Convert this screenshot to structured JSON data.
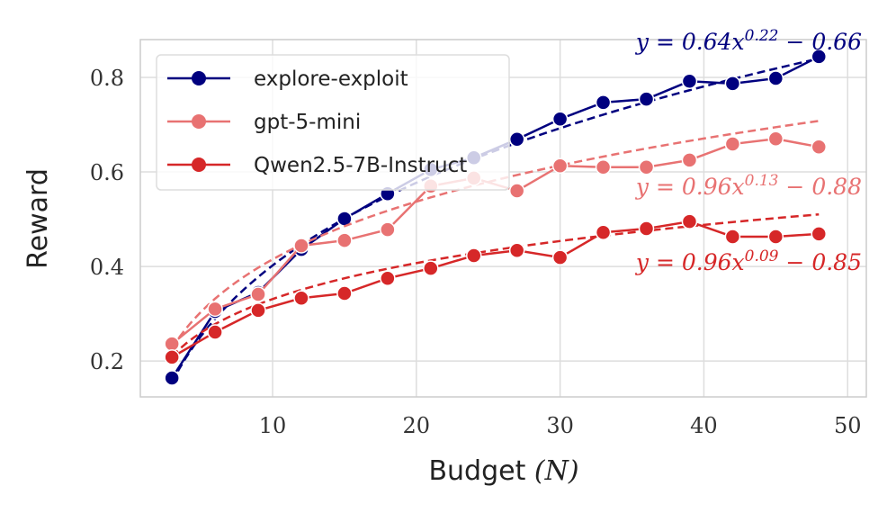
{
  "chart_data": {
    "type": "line",
    "title": "",
    "xlabel": "Budget",
    "xlabel_math": "(N)",
    "ylabel": "Reward",
    "xlim": [
      0.8,
      51.3
    ],
    "ylim": [
      0.124,
      0.88
    ],
    "xticks": [
      10,
      20,
      30,
      40,
      50
    ],
    "yticks": [
      0.2,
      0.4,
      0.6,
      0.8
    ],
    "ytick_labels": [
      "0.2",
      "0.4",
      "0.6",
      "0.8"
    ],
    "grid": true,
    "legend_placement": "top-left",
    "x": [
      3,
      6,
      9,
      12,
      15,
      18,
      21,
      24,
      27,
      30,
      33,
      36,
      39,
      42,
      45,
      48
    ],
    "series": [
      {
        "name": "explore-exploit",
        "color": "#00007f",
        "values": [
          0.164,
          0.305,
          0.345,
          0.436,
          0.501,
          0.554,
          0.605,
          0.63,
          0.669,
          0.712,
          0.747,
          0.754,
          0.792,
          0.787,
          0.798,
          0.844
        ],
        "fit": {
          "a": 0.64,
          "b": 0.22,
          "c": -0.66
        },
        "annotation": {
          "base": "y = 0.64x",
          "exp": "0.22",
          "tail": " − 0.66"
        }
      },
      {
        "name": "gpt-5-mini",
        "color": "#e87272",
        "values": [
          0.236,
          0.31,
          0.341,
          0.444,
          0.455,
          0.478,
          0.57,
          0.587,
          0.56,
          0.613,
          0.61,
          0.61,
          0.625,
          0.659,
          0.67,
          0.653
        ],
        "fit": {
          "a": 0.96,
          "b": 0.13,
          "c": -0.88
        },
        "annotation": {
          "base": "y = 0.96x",
          "exp": "0.13",
          "tail": " − 0.88"
        }
      },
      {
        "name": "Qwen2.5-7B-Instruct",
        "color": "#d62728",
        "values": [
          0.208,
          0.261,
          0.307,
          0.333,
          0.343,
          0.375,
          0.396,
          0.423,
          0.434,
          0.419,
          0.472,
          0.48,
          0.495,
          0.463,
          0.463,
          0.469
        ],
        "fit": {
          "a": 0.96,
          "b": 0.09,
          "c": -0.85
        },
        "annotation": {
          "base": "y = 0.96x",
          "exp": "0.09",
          "tail": " − 0.85"
        }
      }
    ]
  }
}
